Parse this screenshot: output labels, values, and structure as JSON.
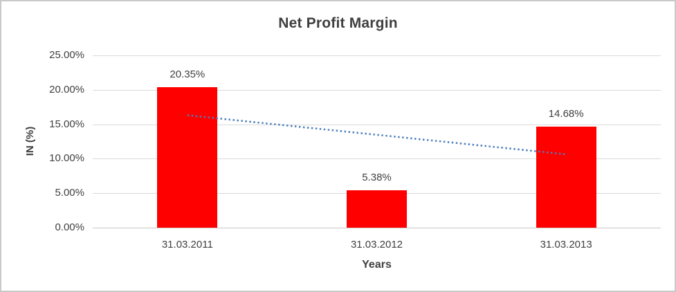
{
  "chart_data": {
    "type": "bar",
    "title": "Net Profit Margin",
    "xlabel": "Years",
    "ylabel": "IN (%)",
    "categories": [
      "31.03.2011",
      "31.03.2012",
      "31.03.2013"
    ],
    "values": [
      20.35,
      5.38,
      14.68
    ],
    "value_labels": [
      "20.35%",
      "5.38%",
      "14.68%"
    ],
    "ylim": [
      0,
      25
    ],
    "yticks": [
      0,
      5,
      10,
      15,
      20,
      25
    ],
    "ytick_labels": [
      "0.00%",
      "5.00%",
      "10.00%",
      "15.00%",
      "20.00%",
      "25.00%"
    ],
    "grid": "horizontal",
    "legend": "none",
    "bar_color": "#ff0000",
    "gridline_color": "#d9d9d9",
    "text_color": "#404040",
    "trendline": {
      "type": "linear",
      "style": "dotted",
      "color": "#4a7ebb",
      "start_value": 16.31,
      "end_value": 10.64
    }
  }
}
